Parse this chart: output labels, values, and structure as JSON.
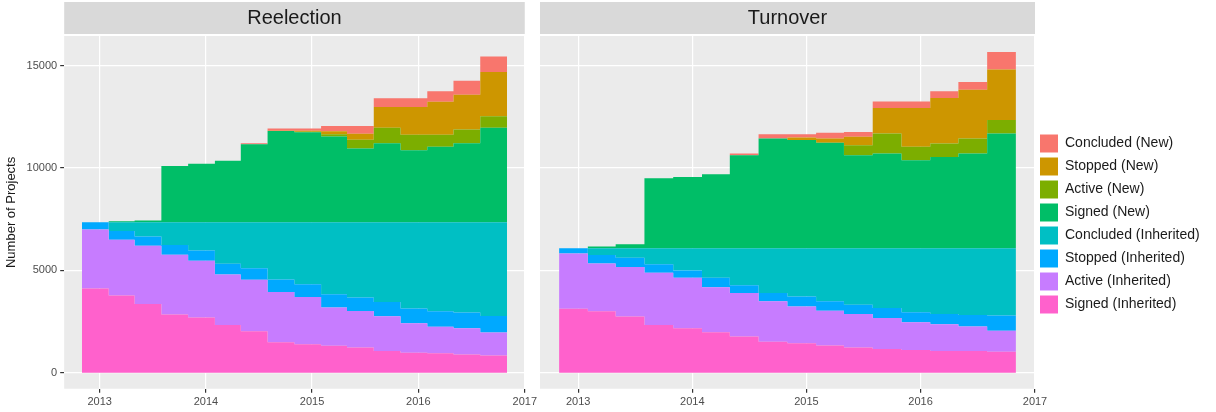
{
  "chart_data": [
    {
      "type": "area",
      "title": "Reelection",
      "ylabel": "Number of Projects",
      "stacked": true,
      "grid": true,
      "x": [
        "2012-11",
        "2013-02",
        "2013-02",
        "2013-05",
        "2013-05",
        "2013-08",
        "2013-08",
        "2013-11",
        "2013-11",
        "2014-02",
        "2014-02",
        "2014-05",
        "2014-05",
        "2014-08",
        "2014-08",
        "2014-11",
        "2014-11",
        "2015-02",
        "2015-02",
        "2015-05",
        "2015-05",
        "2015-08",
        "2015-08",
        "2015-11",
        "2015-11",
        "2016-02",
        "2016-02",
        "2016-05",
        "2016-05",
        "2016-08",
        "2016-08",
        "2016-11"
      ],
      "xlim": [
        "2012-09",
        "2017-01"
      ],
      "xticks": [
        "2013",
        "2014",
        "2015",
        "2016",
        "2017"
      ],
      "ylim": [
        -780,
        16440
      ],
      "yticks": [
        0,
        5000,
        10000,
        15000
      ],
      "series": [
        {
          "color": "#ff61cc",
          "values": [
            4120,
            4120,
            3780,
            3780,
            3360,
            3360,
            2850,
            2850,
            2700,
            2700,
            2340,
            2340,
            2030,
            2030,
            1490,
            1490,
            1400,
            1400,
            1320,
            1320,
            1240,
            1240,
            1070,
            1070,
            980,
            980,
            950,
            950,
            900,
            900,
            850,
            850
          ]
        },
        {
          "color": "#c77cff",
          "values": [
            2880,
            2880,
            2710,
            2710,
            2840,
            2840,
            2910,
            2910,
            2770,
            2770,
            2460,
            2460,
            2510,
            2510,
            2460,
            2460,
            2300,
            2300,
            1870,
            1870,
            1780,
            1780,
            1690,
            1690,
            1440,
            1440,
            1300,
            1300,
            1270,
            1270,
            1120,
            1120
          ]
        },
        {
          "color": "#00a9ff",
          "values": [
            350,
            350,
            430,
            430,
            450,
            450,
            480,
            480,
            500,
            500,
            520,
            520,
            560,
            560,
            600,
            600,
            620,
            620,
            640,
            640,
            660,
            660,
            700,
            700,
            720,
            720,
            760,
            760,
            780,
            780,
            800,
            800
          ]
        },
        {
          "color": "#00bfc4",
          "values": [
            0,
            0,
            430,
            430,
            700,
            700,
            1110,
            1110,
            1380,
            1380,
            2030,
            2030,
            2250,
            2250,
            2800,
            2800,
            3030,
            3030,
            3520,
            3520,
            3670,
            3670,
            3890,
            3890,
            4210,
            4210,
            4340,
            4340,
            4400,
            4400,
            4580,
            4580
          ]
        },
        {
          "color": "#00be67",
          "values": [
            0,
            0,
            50,
            50,
            80,
            80,
            2750,
            2750,
            2850,
            2850,
            3000,
            3000,
            3810,
            3810,
            4450,
            4450,
            4390,
            4390,
            4190,
            4190,
            3600,
            3600,
            3850,
            3850,
            3510,
            3510,
            3680,
            3680,
            3850,
            3850,
            4610,
            4610
          ]
        },
        {
          "color": "#7cae00",
          "values": [
            0,
            0,
            0,
            0,
            0,
            0,
            0,
            0,
            0,
            0,
            0,
            0,
            0,
            0,
            0,
            0,
            30,
            30,
            100,
            100,
            420,
            420,
            760,
            760,
            760,
            760,
            590,
            590,
            680,
            680,
            560,
            560
          ]
        },
        {
          "color": "#cd9600",
          "values": [
            0,
            0,
            0,
            0,
            0,
            0,
            0,
            0,
            0,
            0,
            0,
            0,
            0,
            0,
            20,
            20,
            50,
            50,
            150,
            150,
            300,
            300,
            1020,
            1020,
            1360,
            1360,
            1610,
            1610,
            1690,
            1690,
            2160,
            2160
          ]
        },
        {
          "color": "#f8766d",
          "values": [
            0,
            0,
            0,
            0,
            0,
            0,
            0,
            0,
            0,
            0,
            0,
            0,
            40,
            40,
            100,
            100,
            100,
            100,
            260,
            260,
            380,
            380,
            420,
            420,
            420,
            420,
            510,
            510,
            680,
            680,
            760,
            760
          ]
        }
      ]
    },
    {
      "type": "area",
      "title": "Turnover",
      "stacked": true,
      "grid": true,
      "tick_labels": "x",
      "legend": "right",
      "x": [
        "2012-11",
        "2013-02",
        "2013-02",
        "2013-05",
        "2013-05",
        "2013-08",
        "2013-08",
        "2013-11",
        "2013-11",
        "2014-02",
        "2014-02",
        "2014-05",
        "2014-05",
        "2014-08",
        "2014-08",
        "2014-11",
        "2014-11",
        "2015-02",
        "2015-02",
        "2015-05",
        "2015-05",
        "2015-08",
        "2015-08",
        "2015-11",
        "2015-11",
        "2016-02",
        "2016-02",
        "2016-05",
        "2016-05",
        "2016-08",
        "2016-08",
        "2016-11"
      ],
      "xlim": [
        "2012-09",
        "2017-01"
      ],
      "xticks": [
        "2013",
        "2014",
        "2015",
        "2016",
        "2017"
      ],
      "ylim": [
        -780,
        16440
      ],
      "yticks": [
        0,
        5000,
        10000,
        15000
      ],
      "series": [
        {
          "name": "Signed (Inherited)",
          "color": "#ff61cc",
          "values": [
            3130,
            3130,
            3000,
            3000,
            2750,
            2750,
            2340,
            2340,
            2180,
            2180,
            1980,
            1980,
            1770,
            1770,
            1520,
            1520,
            1440,
            1440,
            1330,
            1330,
            1230,
            1230,
            1160,
            1160,
            1110,
            1110,
            1060,
            1060,
            1060,
            1060,
            1030,
            1030
          ]
        },
        {
          "name": "Active (Inherited)",
          "color": "#c77cff",
          "values": [
            2690,
            2690,
            2330,
            2330,
            2410,
            2410,
            2540,
            2540,
            2460,
            2460,
            2200,
            2200,
            2130,
            2130,
            1970,
            1970,
            1800,
            1800,
            1700,
            1700,
            1640,
            1640,
            1510,
            1510,
            1360,
            1360,
            1310,
            1310,
            1200,
            1200,
            1020,
            1020
          ]
        },
        {
          "name": "Stopped (Inherited)",
          "color": "#00a9ff",
          "values": [
            260,
            260,
            420,
            420,
            460,
            460,
            420,
            420,
            360,
            360,
            460,
            460,
            380,
            380,
            410,
            410,
            490,
            490,
            460,
            460,
            450,
            450,
            490,
            490,
            490,
            490,
            500,
            500,
            560,
            560,
            750,
            750
          ]
        },
        {
          "name": "Concluded (Inherited)",
          "color": "#00bfc4",
          "values": [
            0,
            0,
            330,
            330,
            460,
            460,
            780,
            780,
            1080,
            1080,
            1440,
            1440,
            1800,
            1800,
            2180,
            2180,
            2350,
            2350,
            2590,
            2590,
            2760,
            2760,
            2920,
            2920,
            3120,
            3120,
            3210,
            3210,
            3260,
            3260,
            3280,
            3280
          ]
        },
        {
          "name": "Signed (New)",
          "color": "#00be67",
          "values": [
            0,
            0,
            80,
            80,
            200,
            200,
            3420,
            3420,
            3480,
            3480,
            3610,
            3610,
            4540,
            4540,
            5360,
            5360,
            5280,
            5280,
            5150,
            5150,
            4540,
            4540,
            4620,
            4620,
            4290,
            4290,
            4460,
            4460,
            4620,
            4620,
            5600,
            5600
          ]
        },
        {
          "name": "Active (New)",
          "color": "#7cae00",
          "values": [
            0,
            0,
            0,
            0,
            0,
            0,
            0,
            0,
            0,
            0,
            0,
            0,
            0,
            0,
            0,
            0,
            0,
            0,
            0,
            0,
            490,
            490,
            980,
            980,
            660,
            660,
            650,
            650,
            740,
            740,
            660,
            660
          ]
        },
        {
          "name": "Stopped (New)",
          "color": "#cd9600",
          "values": [
            0,
            0,
            0,
            0,
            0,
            0,
            0,
            0,
            0,
            0,
            0,
            0,
            0,
            0,
            0,
            0,
            120,
            120,
            210,
            210,
            410,
            410,
            1240,
            1240,
            1890,
            1890,
            2220,
            2220,
            2380,
            2380,
            2460,
            2460
          ]
        },
        {
          "name": "Concluded (New)",
          "color": "#f8766d",
          "values": [
            0,
            0,
            0,
            0,
            0,
            0,
            0,
            0,
            0,
            0,
            0,
            0,
            80,
            80,
            210,
            210,
            170,
            170,
            280,
            280,
            230,
            230,
            320,
            320,
            320,
            320,
            330,
            330,
            380,
            380,
            860,
            860
          ]
        }
      ]
    }
  ]
}
